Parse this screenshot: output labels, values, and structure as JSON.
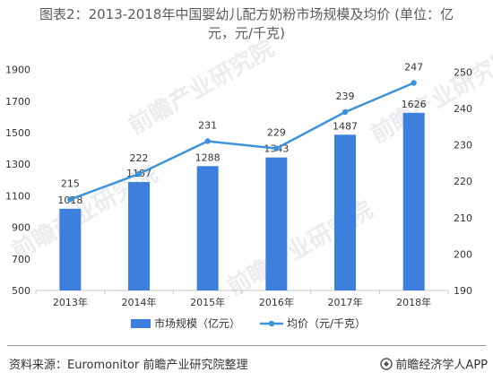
{
  "title": {
    "line1": "图表2：2013-2018年中国婴幼儿配方奶粉市场规模及均价 (单位：亿",
    "line2": "元，元/千克)"
  },
  "chart_data": {
    "type": "bar",
    "categories": [
      "2013年",
      "2014年",
      "2015年",
      "2016年",
      "2017年",
      "2018年"
    ],
    "series": [
      {
        "name": "市场规模（亿元）",
        "type": "bar",
        "axis": "left",
        "color": "#3d7fdc",
        "values": [
          1018,
          1187,
          1288,
          1343,
          1487,
          1626
        ]
      },
      {
        "name": "均价（元/千克）",
        "type": "line",
        "axis": "right",
        "color": "#3d92dc",
        "values": [
          215,
          222,
          231,
          229,
          239,
          247
        ]
      }
    ],
    "y_left": {
      "min": 500,
      "max": 2000,
      "ticks": [
        500,
        700,
        900,
        1100,
        1300,
        1500,
        1700,
        1900
      ]
    },
    "y_right": {
      "min": 190,
      "max": 255,
      "ticks": [
        190,
        200,
        210,
        220,
        230,
        240,
        250
      ]
    },
    "grid": false,
    "legend": "bottom"
  },
  "footer": {
    "source": "资料来源：Euromonitor 前瞻产业研究院整理",
    "brand": "前瞻经济学人APP"
  },
  "watermark": "前瞻产业研究院"
}
